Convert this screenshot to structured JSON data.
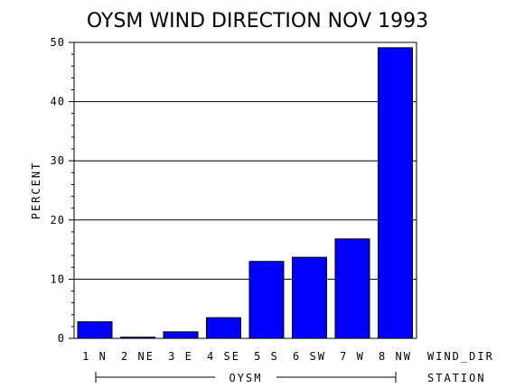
{
  "chart_data": {
    "type": "bar",
    "title": "OYSM WIND DIRECTION NOV 1993",
    "ylabel": "PERCENT",
    "xlabel": "WIND_DIR",
    "group_axis_label": "STATION",
    "group": "OYSM",
    "categories": [
      "1 N",
      "2 NE",
      "3 E",
      "4 SE",
      "5 S",
      "6 SW",
      "7 W",
      "8 NW"
    ],
    "values": [
      2.8,
      0.2,
      1.1,
      3.5,
      13.0,
      13.7,
      16.8,
      49.1
    ],
    "ylim": [
      0,
      50
    ],
    "yticks": [
      0,
      10,
      20,
      30,
      40,
      50
    ],
    "grid": true,
    "bar_color": "#0000ff"
  }
}
